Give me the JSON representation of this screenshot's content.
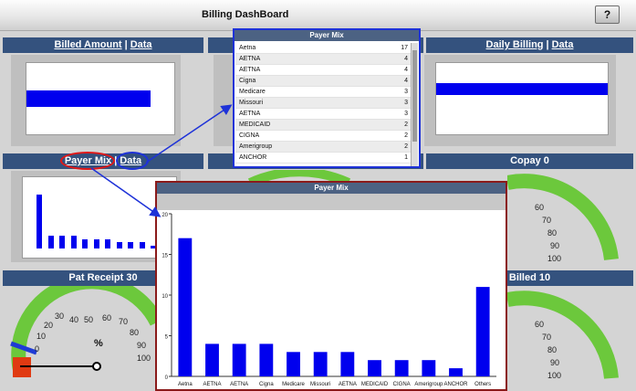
{
  "window": {
    "title": "Billing DashBoard",
    "help_label": "?"
  },
  "panels": {
    "billed_amount": {
      "title": "Billed Amount",
      "data_link": "Data",
      "sep": "|"
    },
    "daily_billing": {
      "title": "Daily Billing",
      "data_link": "Data",
      "sep": "|"
    },
    "payer_mix": {
      "title": "Payer Mix",
      "data_link": "Data",
      "sep": "|"
    },
    "copay": {
      "title": "Copay 0"
    },
    "pat_receipt": {
      "title": "Pat Receipt 30",
      "unit": "%",
      "ticks": [
        "0",
        "10",
        "20",
        "30",
        "40",
        "50",
        "60",
        "70",
        "80",
        "90",
        "100"
      ]
    },
    "billed": {
      "title": "Billed 10",
      "ticks": [
        "60",
        "70",
        "80",
        "90",
        "100"
      ]
    },
    "copay_ticks": [
      "60",
      "70",
      "80",
      "90",
      "100"
    ]
  },
  "payer_table": {
    "title": "Payer Mix",
    "rows": [
      {
        "name": "Aetna",
        "value": "17"
      },
      {
        "name": "AETNA",
        "value": "4"
      },
      {
        "name": "AETNA",
        "value": "4"
      },
      {
        "name": "Cigna",
        "value": "4"
      },
      {
        "name": "Medicare",
        "value": "3"
      },
      {
        "name": "Missouri",
        "value": "3"
      },
      {
        "name": "AETNA",
        "value": "3"
      },
      {
        "name": "MEDICAID",
        "value": "2"
      },
      {
        "name": "CIGNA",
        "value": "2"
      },
      {
        "name": "Amerigroup",
        "value": "2"
      },
      {
        "name": "ANCHOR",
        "value": "1"
      }
    ]
  },
  "chart_data": {
    "type": "bar",
    "title": "Payer Mix",
    "categories": [
      "Aetna",
      "AETNA",
      "AETNA",
      "Cigna",
      "Medicare",
      "Missouri",
      "AETNA",
      "MEDICAID",
      "CIGNA",
      "Amerigroup",
      "ANCHOR",
      "Others"
    ],
    "values": [
      17,
      4,
      4,
      4,
      3,
      3,
      3,
      2,
      2,
      2,
      1,
      11
    ],
    "ylim": [
      0,
      20
    ],
    "yticks": [
      "0",
      "5",
      "10",
      "15",
      "20"
    ],
    "xlabel": "",
    "ylabel": "",
    "bar_color": "#0000ee",
    "grid": false
  },
  "colors": {
    "panel_header": "#34527e",
    "gauge_green": "#6cc83c",
    "gauge_red": "#e03a12",
    "needle_blue": "#1f3bd6",
    "annotation_red": "#e01818",
    "annotation_blue": "#1e32d8"
  }
}
